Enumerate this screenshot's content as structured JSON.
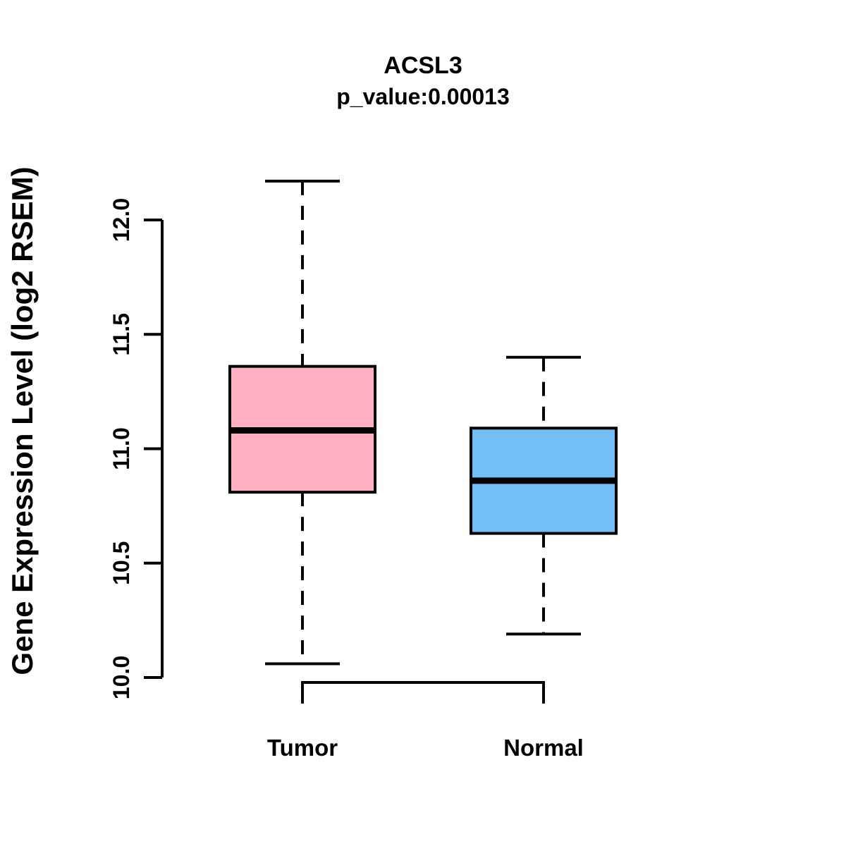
{
  "chart_data": {
    "type": "boxplot",
    "title": "ACSL3",
    "subtitle": "p_value:0.00013",
    "ylabel": "Gene Expression Level (log2 RSEM)",
    "ylim": [
      10.0,
      12.0
    ],
    "yticks": [
      10.0,
      10.5,
      11.0,
      11.5,
      12.0
    ],
    "ytick_labels": [
      "10.0",
      "10.5",
      "11.0",
      "11.5",
      "12.0"
    ],
    "grid": false,
    "legend": "none",
    "groups": [
      {
        "label": "Tumor",
        "color": "#FFB1C1",
        "stats": {
          "lower_whisker": 10.06,
          "q1": 10.81,
          "median": 11.08,
          "q3": 11.36,
          "upper_whisker": 12.17
        }
      },
      {
        "label": "Normal",
        "color": "#73BEF5",
        "stats": {
          "lower_whisker": 10.19,
          "q1": 10.63,
          "median": 10.86,
          "q3": 11.09,
          "upper_whisker": 11.4
        }
      }
    ]
  },
  "colors": {
    "stroke": "#000000",
    "background": "#FFFFFF"
  }
}
